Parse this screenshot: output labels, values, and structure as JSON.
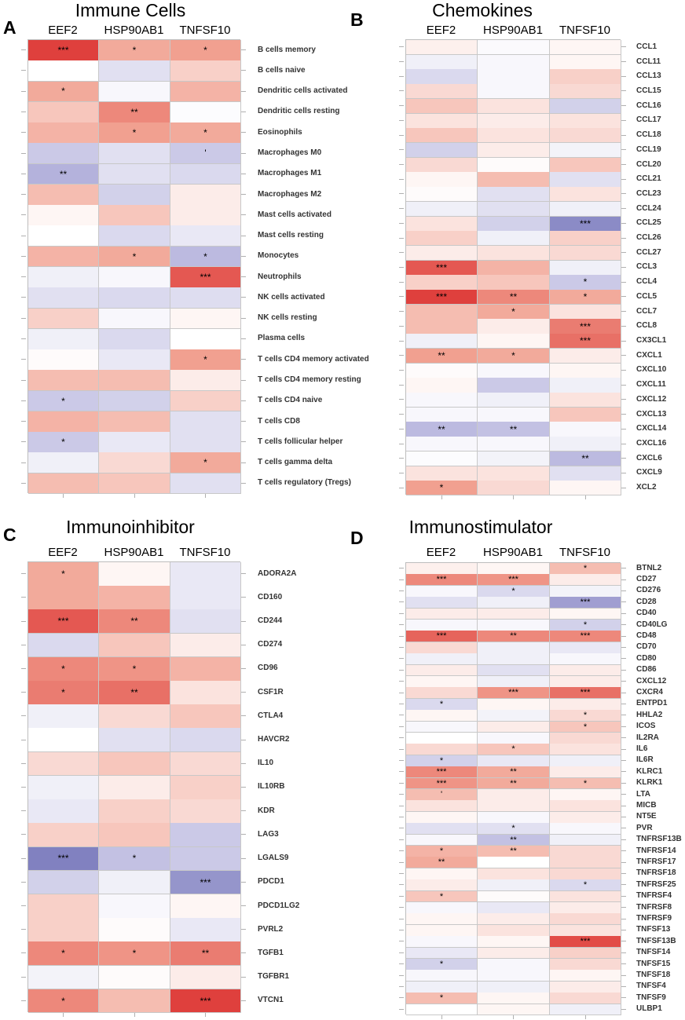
{
  "figure": {
    "description_label": "Correlation heatmaps"
  },
  "chart_data": [
    {
      "type": "heatmap",
      "panel": "A",
      "title": "Immune Cells",
      "columns": [
        "EEF2",
        "HSP90AB1",
        "TNFSF10"
      ],
      "rows": [
        "B cells memory",
        "B cells naive",
        "Dendritic cells activated",
        "Dendritic cells resting",
        "Eosinophils",
        "Macrophages M0",
        "Macrophages M1",
        "Macrophages M2",
        "Mast cells activated",
        "Mast cells resting",
        "Monocytes",
        "Neutrophils",
        "NK cells activated",
        "NK cells resting",
        "Plasma cells",
        "T cells CD4 memory activated",
        "T cells CD4 memory resting",
        "T cells CD4 naive",
        "T cells CD8",
        "T cells follicular helper",
        "T cells gamma delta",
        "T cells regulatory (Tregs)"
      ],
      "values": [
        [
          0.9,
          0.45,
          0.5
        ],
        [
          0.0,
          -0.2,
          0.25
        ],
        [
          0.45,
          -0.05,
          0.4
        ],
        [
          0.3,
          0.6,
          -0.02
        ],
        [
          0.4,
          0.5,
          0.45
        ],
        [
          -0.35,
          -0.2,
          -0.35
        ],
        [
          -0.5,
          -0.2,
          -0.25
        ],
        [
          0.35,
          -0.3,
          0.1
        ],
        [
          0.05,
          0.3,
          0.1
        ],
        [
          0.0,
          -0.25,
          -0.15
        ],
        [
          0.4,
          0.45,
          -0.45
        ],
        [
          -0.1,
          -0.05,
          0.8
        ],
        [
          -0.2,
          -0.25,
          -0.22
        ],
        [
          0.25,
          -0.05,
          0.05
        ],
        [
          -0.1,
          -0.25,
          0.0
        ],
        [
          0.02,
          -0.15,
          0.5
        ],
        [
          0.35,
          0.35,
          0.1
        ],
        [
          -0.35,
          -0.3,
          0.25
        ],
        [
          0.4,
          0.35,
          -0.2
        ],
        [
          -0.35,
          -0.15,
          -0.2
        ],
        [
          -0.1,
          0.2,
          0.45
        ],
        [
          0.35,
          0.3,
          -0.2
        ]
      ],
      "stars": [
        [
          "***",
          "*",
          "*"
        ],
        [
          "",
          "",
          ""
        ],
        [
          "*",
          "",
          ""
        ],
        [
          "",
          "**",
          ""
        ],
        [
          "",
          "*",
          "*"
        ],
        [
          "",
          "",
          "'"
        ],
        [
          "**",
          "",
          ""
        ],
        [
          "",
          "",
          ""
        ],
        [
          "",
          "",
          ""
        ],
        [
          "",
          "",
          ""
        ],
        [
          "",
          "*",
          "*"
        ],
        [
          "",
          "",
          "***"
        ],
        [
          "",
          "",
          ""
        ],
        [
          "",
          "",
          ""
        ],
        [
          "",
          "",
          ""
        ],
        [
          "",
          "",
          "*"
        ],
        [
          "",
          "",
          ""
        ],
        [
          "*",
          "",
          ""
        ],
        [
          "",
          "",
          ""
        ],
        [
          "*",
          "",
          ""
        ],
        [
          "",
          "",
          "*"
        ],
        [
          "",
          "",
          ""
        ]
      ]
    },
    {
      "type": "heatmap",
      "panel": "B",
      "title": "Chemokines",
      "columns": [
        "EEF2",
        "HSP90AB1",
        "TNFSF10"
      ],
      "rows": [
        "CCL1",
        "CCL11",
        "CCL13",
        "CCL15",
        "CCL16",
        "CCL17",
        "CCL18",
        "CCL19",
        "CCL20",
        "CCL21",
        "CCL23",
        "CCL24",
        "CCL25",
        "CCL26",
        "CCL27",
        "CCL3",
        "CCL4",
        "CCL5",
        "CCL7",
        "CCL8",
        "CX3CL1",
        "CXCL1",
        "CXCL10",
        "CXCL11",
        "CXCL12",
        "CXCL13",
        "CXCL14",
        "CXCL16",
        "CXCL6",
        "CXCL9",
        "XCL2"
      ],
      "values": [
        [
          0.08,
          -0.03,
          0.05
        ],
        [
          -0.1,
          -0.05,
          0.05
        ],
        [
          -0.25,
          -0.05,
          0.25
        ],
        [
          0.2,
          -0.05,
          0.2
        ],
        [
          0.3,
          0.15,
          -0.3
        ],
        [
          0.15,
          0.1,
          0.15
        ],
        [
          0.3,
          0.15,
          0.2
        ],
        [
          -0.3,
          0.1,
          -0.08
        ],
        [
          0.2,
          0.02,
          0.3
        ],
        [
          0.05,
          0.35,
          -0.2
        ],
        [
          0.02,
          -0.2,
          0.15
        ],
        [
          -0.1,
          -0.2,
          -0.1
        ],
        [
          0.15,
          -0.3,
          -0.7
        ],
        [
          0.25,
          -0.1,
          0.25
        ],
        [
          0.1,
          0.15,
          0.2
        ],
        [
          0.8,
          0.4,
          -0.1
        ],
        [
          0.25,
          0.3,
          -0.35
        ],
        [
          0.9,
          0.6,
          0.45
        ],
        [
          0.35,
          0.45,
          0.15
        ],
        [
          0.35,
          0.1,
          0.65
        ],
        [
          -0.1,
          0.05,
          0.7
        ],
        [
          0.5,
          0.45,
          0.1
        ],
        [
          0.02,
          -0.05,
          0.05
        ],
        [
          0.05,
          -0.35,
          -0.1
        ],
        [
          -0.05,
          -0.1,
          0.15
        ],
        [
          -0.05,
          -0.05,
          0.3
        ],
        [
          -0.45,
          -0.4,
          -0.05
        ],
        [
          -0.05,
          -0.05,
          -0.1
        ],
        [
          -0.02,
          -0.08,
          -0.45
        ],
        [
          0.15,
          0.15,
          -0.2
        ],
        [
          0.5,
          0.2,
          0.05
        ]
      ],
      "stars": [
        [
          "",
          "",
          ""
        ],
        [
          "",
          "",
          ""
        ],
        [
          "",
          "",
          ""
        ],
        [
          "",
          "",
          ""
        ],
        [
          "",
          "",
          ""
        ],
        [
          "",
          "",
          ""
        ],
        [
          "",
          "",
          ""
        ],
        [
          "",
          "",
          ""
        ],
        [
          "",
          "",
          ""
        ],
        [
          "",
          "",
          ""
        ],
        [
          "",
          "",
          ""
        ],
        [
          "",
          "",
          ""
        ],
        [
          "",
          "",
          "***"
        ],
        [
          "",
          "",
          ""
        ],
        [
          "",
          "",
          ""
        ],
        [
          "***",
          "",
          ""
        ],
        [
          "",
          "",
          "*"
        ],
        [
          "***",
          "**",
          "*"
        ],
        [
          "",
          "*",
          ""
        ],
        [
          "",
          "",
          "***"
        ],
        [
          "",
          "",
          "***"
        ],
        [
          "**",
          "*",
          ""
        ],
        [
          "",
          "",
          ""
        ],
        [
          "",
          "",
          ""
        ],
        [
          "",
          "",
          ""
        ],
        [
          "",
          "",
          ""
        ],
        [
          "**",
          "**",
          ""
        ],
        [
          "",
          "",
          ""
        ],
        [
          "",
          "",
          "**"
        ],
        [
          "",
          "",
          ""
        ],
        [
          "*",
          "",
          ""
        ]
      ]
    },
    {
      "type": "heatmap",
      "panel": "C",
      "title": "Immunoinhibitor",
      "columns": [
        "EEF2",
        "HSP90AB1",
        "TNFSF10"
      ],
      "rows": [
        "ADORA2A",
        "CD160",
        "CD244",
        "CD274",
        "CD96",
        "CSF1R",
        "CTLA4",
        "HAVCR2",
        "IL10",
        "IL10RB",
        "KDR",
        "LAG3",
        "LGALS9",
        "PDCD1",
        "PDCD1LG2",
        "PVRL2",
        "TGFB1",
        "TGFBR1",
        "VTCN1"
      ],
      "values": [
        [
          0.45,
          0.05,
          -0.15
        ],
        [
          0.45,
          0.4,
          -0.15
        ],
        [
          0.8,
          0.6,
          -0.2
        ],
        [
          -0.25,
          0.3,
          0.1
        ],
        [
          0.6,
          0.55,
          0.4
        ],
        [
          0.65,
          0.7,
          0.15
        ],
        [
          -0.1,
          0.2,
          0.3
        ],
        [
          0.0,
          -0.2,
          -0.25
        ],
        [
          0.2,
          0.3,
          0.2
        ],
        [
          -0.1,
          0.1,
          0.25
        ],
        [
          -0.15,
          0.25,
          0.2
        ],
        [
          0.25,
          0.3,
          -0.35
        ],
        [
          -0.75,
          -0.4,
          -0.35
        ],
        [
          -0.3,
          -0.1,
          -0.65
        ],
        [
          0.25,
          -0.05,
          0.05
        ],
        [
          0.25,
          0.02,
          -0.15
        ],
        [
          0.6,
          0.55,
          0.65
        ],
        [
          -0.08,
          0.02,
          0.1
        ],
        [
          0.6,
          0.35,
          0.9
        ]
      ],
      "stars": [
        [
          "*",
          "",
          ""
        ],
        [
          "",
          "",
          ""
        ],
        [
          "***",
          "**",
          ""
        ],
        [
          "",
          "",
          ""
        ],
        [
          "*",
          "*",
          ""
        ],
        [
          "*",
          "**",
          ""
        ],
        [
          "",
          "",
          ""
        ],
        [
          "",
          "",
          ""
        ],
        [
          "",
          "",
          ""
        ],
        [
          "",
          "",
          ""
        ],
        [
          "",
          "",
          ""
        ],
        [
          "",
          "",
          ""
        ],
        [
          "***",
          "*",
          ""
        ],
        [
          "",
          "",
          "***"
        ],
        [
          "",
          "",
          ""
        ],
        [
          "",
          "",
          ""
        ],
        [
          "*",
          "*",
          "**"
        ],
        [
          "",
          "",
          ""
        ],
        [
          "*",
          "",
          "***"
        ]
      ]
    },
    {
      "type": "heatmap",
      "panel": "D",
      "title": "Immunostimulator",
      "columns": [
        "EEF2",
        "HSP90AB1",
        "TNFSF10"
      ],
      "rows": [
        "BTNL2",
        "CD27",
        "CD276",
        "CD28",
        "CD40",
        "CD40LG",
        "CD48",
        "CD70",
        "CD80",
        "CD86",
        "CXCL12",
        "CXCR4",
        "ENTPD1",
        "HHLA2",
        "ICOS",
        "IL2RA",
        "IL6",
        "IL6R",
        "KLRC1",
        "KLRK1",
        "LTA",
        "MICB",
        "NT5E",
        "PVR",
        "TNFRSF13B",
        "TNFRSF14",
        "TNFRSF17",
        "TNFRSF18",
        "TNFRSF25",
        "TNFRSF4",
        "TNFRSF8",
        "TNFRSF9",
        "TNFSF13",
        "TNFSF13B",
        "TNFSF14",
        "TNFSF15",
        "TNFSF18",
        "TNFSF4",
        "TNFSF9",
        "ULBP1"
      ],
      "values": [
        [
          0.08,
          0.05,
          0.35
        ],
        [
          0.6,
          0.55,
          0.1
        ],
        [
          -0.05,
          -0.25,
          -0.08
        ],
        [
          -0.2,
          -0.1,
          -0.6
        ],
        [
          0.1,
          0.1,
          0.05
        ],
        [
          -0.05,
          -0.05,
          -0.3
        ],
        [
          0.75,
          0.6,
          0.6
        ],
        [
          0.2,
          -0.1,
          -0.15
        ],
        [
          -0.1,
          -0.1,
          -0.05
        ],
        [
          0.1,
          -0.2,
          0.1
        ],
        [
          0.05,
          -0.1,
          0.1
        ],
        [
          0.2,
          0.55,
          0.7
        ],
        [
          -0.25,
          0.05,
          0.1
        ],
        [
          0.05,
          -0.08,
          0.2
        ],
        [
          -0.05,
          0.1,
          0.3
        ],
        [
          0.0,
          -0.05,
          0.2
        ],
        [
          0.2,
          0.3,
          0.15
        ],
        [
          -0.3,
          -0.15,
          -0.1
        ],
        [
          0.6,
          0.45,
          0.1
        ],
        [
          0.55,
          0.45,
          0.35
        ],
        [
          0.35,
          0.1,
          0.05
        ],
        [
          0.15,
          0.1,
          0.15
        ],
        [
          0.05,
          -0.05,
          0.1
        ],
        [
          -0.2,
          -0.2,
          -0.05
        ],
        [
          -0.05,
          -0.4,
          -0.1
        ],
        [
          0.4,
          0.35,
          0.2
        ],
        [
          0.45,
          0.0,
          0.2
        ],
        [
          0.05,
          0.15,
          0.2
        ],
        [
          0.1,
          -0.1,
          -0.25
        ],
        [
          0.3,
          0.02,
          0.15
        ],
        [
          -0.05,
          -0.15,
          0.1
        ],
        [
          0.05,
          0.1,
          0.2
        ],
        [
          0.05,
          0.15,
          0.15
        ],
        [
          -0.05,
          0.05,
          0.85
        ],
        [
          -0.15,
          0.1,
          0.25
        ],
        [
          -0.3,
          -0.05,
          0.2
        ],
        [
          -0.05,
          -0.05,
          0.05
        ],
        [
          -0.1,
          -0.1,
          0.1
        ],
        [
          0.35,
          0.05,
          0.2
        ],
        [
          0.0,
          0.05,
          -0.1
        ]
      ],
      "stars": [
        [
          "",
          "",
          "*"
        ],
        [
          "***",
          "***",
          ""
        ],
        [
          "",
          "*",
          ""
        ],
        [
          "",
          "",
          "***"
        ],
        [
          "",
          "",
          ""
        ],
        [
          "",
          "",
          "*"
        ],
        [
          "***",
          "**",
          "***"
        ],
        [
          "",
          "",
          ""
        ],
        [
          "",
          "",
          ""
        ],
        [
          "",
          "",
          ""
        ],
        [
          "",
          "",
          ""
        ],
        [
          "",
          "***",
          "***"
        ],
        [
          "*",
          "",
          ""
        ],
        [
          "",
          "",
          "*"
        ],
        [
          "",
          "",
          "*"
        ],
        [
          "",
          "",
          ""
        ],
        [
          "",
          "*",
          ""
        ],
        [
          "*",
          "",
          ""
        ],
        [
          "***",
          "**",
          ""
        ],
        [
          "***",
          "**",
          "*"
        ],
        [
          "'",
          "",
          ""
        ],
        [
          "",
          "",
          ""
        ],
        [
          "",
          "",
          ""
        ],
        [
          "",
          "*",
          ""
        ],
        [
          "",
          "**",
          ""
        ],
        [
          "*",
          "**",
          ""
        ],
        [
          "**",
          "",
          ""
        ],
        [
          "",
          "",
          ""
        ],
        [
          "",
          "",
          "*"
        ],
        [
          "*",
          "",
          ""
        ],
        [
          "",
          "",
          ""
        ],
        [
          "",
          "",
          ""
        ],
        [
          "",
          "",
          ""
        ],
        [
          "",
          "",
          "***"
        ],
        [
          "",
          "",
          ""
        ],
        [
          "*",
          "",
          ""
        ],
        [
          "",
          "",
          ""
        ],
        [
          "",
          "",
          ""
        ],
        [
          "*",
          "",
          ""
        ],
        [
          "",
          "",
          ""
        ]
      ]
    }
  ]
}
